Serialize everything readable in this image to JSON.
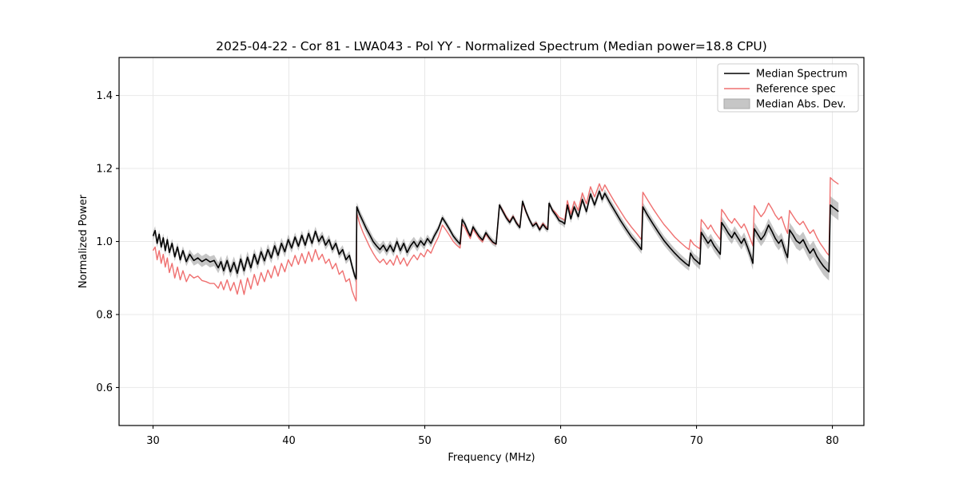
{
  "chart_data": {
    "type": "line",
    "title": "2025-04-22 - Cor 81 - LWA043 - Pol YY - Normalized Spectrum (Median power=18.8 CPU)",
    "xlabel": "Frequency (MHz)",
    "ylabel": "Normalized Power",
    "xlim": [
      27.5,
      82.32
    ],
    "ylim": [
      0.496,
      1.504
    ],
    "xticks": [
      30,
      40,
      50,
      60,
      70,
      80
    ],
    "yticks": [
      0.6,
      0.8,
      1.0,
      1.2,
      1.4
    ],
    "grid": true,
    "grid_color": "#e8e8e8",
    "background": "#ffffff",
    "legend": {
      "location": "upper right"
    },
    "series": [
      {
        "name": "Median Spectrum",
        "type": "line",
        "color": "#000000"
      },
      {
        "name": "Reference spec",
        "type": "line",
        "color": "#ef7070"
      },
      {
        "name": "Median Abs. Dev.",
        "type": "band",
        "color": "#808080",
        "fill_alpha": 0.45
      }
    ],
    "points_format": [
      "freq_mhz",
      "median_spectrum",
      "reference_spec",
      "median_abs_dev"
    ],
    "points": [
      [
        30.0,
        1.015,
        0.975,
        0.012
      ],
      [
        30.15,
        1.03,
        0.985,
        0.012
      ],
      [
        30.3,
        0.995,
        0.95,
        0.012
      ],
      [
        30.45,
        1.02,
        0.975,
        0.012
      ],
      [
        30.6,
        0.985,
        0.94,
        0.012
      ],
      [
        30.75,
        1.01,
        0.965,
        0.012
      ],
      [
        30.9,
        0.975,
        0.93,
        0.012
      ],
      [
        31.05,
        1.005,
        0.955,
        0.012
      ],
      [
        31.2,
        0.97,
        0.915,
        0.012
      ],
      [
        31.4,
        0.995,
        0.94,
        0.012
      ],
      [
        31.6,
        0.958,
        0.9,
        0.012
      ],
      [
        31.8,
        0.985,
        0.93,
        0.012
      ],
      [
        32.0,
        0.95,
        0.895,
        0.012
      ],
      [
        32.2,
        0.975,
        0.92,
        0.012
      ],
      [
        32.45,
        0.945,
        0.89,
        0.013
      ],
      [
        32.7,
        0.965,
        0.91,
        0.013
      ],
      [
        33.0,
        0.948,
        0.9,
        0.014
      ],
      [
        33.3,
        0.955,
        0.905,
        0.015
      ],
      [
        33.6,
        0.945,
        0.893,
        0.015
      ],
      [
        33.9,
        0.952,
        0.89,
        0.015
      ],
      [
        34.2,
        0.944,
        0.885,
        0.015
      ],
      [
        34.5,
        0.948,
        0.885,
        0.015
      ],
      [
        34.8,
        0.928,
        0.872,
        0.015
      ],
      [
        35.0,
        0.945,
        0.89,
        0.015
      ],
      [
        35.2,
        0.92,
        0.868,
        0.016
      ],
      [
        35.45,
        0.948,
        0.895,
        0.016
      ],
      [
        35.7,
        0.917,
        0.865,
        0.016
      ],
      [
        35.95,
        0.943,
        0.888,
        0.016
      ],
      [
        36.2,
        0.913,
        0.856,
        0.016
      ],
      [
        36.45,
        0.952,
        0.895,
        0.016
      ],
      [
        36.7,
        0.92,
        0.855,
        0.016
      ],
      [
        36.95,
        0.957,
        0.9,
        0.016
      ],
      [
        37.2,
        0.928,
        0.87,
        0.015
      ],
      [
        37.45,
        0.965,
        0.91,
        0.015
      ],
      [
        37.7,
        0.938,
        0.88,
        0.015
      ],
      [
        37.95,
        0.972,
        0.915,
        0.015
      ],
      [
        38.2,
        0.947,
        0.89,
        0.015
      ],
      [
        38.45,
        0.978,
        0.922,
        0.015
      ],
      [
        38.7,
        0.955,
        0.9,
        0.015
      ],
      [
        38.95,
        0.988,
        0.933,
        0.015
      ],
      [
        39.2,
        0.962,
        0.905,
        0.015
      ],
      [
        39.45,
        0.995,
        0.94,
        0.015
      ],
      [
        39.7,
        0.972,
        0.917,
        0.015
      ],
      [
        39.95,
        1.005,
        0.95,
        0.014
      ],
      [
        40.2,
        0.982,
        0.932,
        0.013
      ],
      [
        40.45,
        1.012,
        0.962,
        0.013
      ],
      [
        40.7,
        0.987,
        0.937,
        0.013
      ],
      [
        40.95,
        1.017,
        0.967,
        0.013
      ],
      [
        41.2,
        0.99,
        0.94,
        0.013
      ],
      [
        41.45,
        1.022,
        0.972,
        0.013
      ],
      [
        41.7,
        0.995,
        0.945,
        0.013
      ],
      [
        41.95,
        1.028,
        0.978,
        0.013
      ],
      [
        42.2,
        1.0,
        0.95,
        0.013
      ],
      [
        42.45,
        1.015,
        0.965,
        0.013
      ],
      [
        42.7,
        0.99,
        0.94,
        0.013
      ],
      [
        42.95,
        1.005,
        0.952,
        0.013
      ],
      [
        43.2,
        0.978,
        0.925,
        0.012
      ],
      [
        43.45,
        0.995,
        0.94,
        0.012
      ],
      [
        43.7,
        0.965,
        0.91,
        0.012
      ],
      [
        43.95,
        0.978,
        0.92,
        0.012
      ],
      [
        44.2,
        0.95,
        0.89,
        0.012
      ],
      [
        44.45,
        0.962,
        0.898,
        0.012
      ],
      [
        44.65,
        0.932,
        0.865,
        0.012
      ],
      [
        44.85,
        0.905,
        0.845,
        0.012
      ],
      [
        44.95,
        0.897,
        0.837,
        0.012
      ],
      [
        45.0,
        1.095,
        1.077,
        0.012
      ],
      [
        45.2,
        1.075,
        1.05,
        0.013
      ],
      [
        45.45,
        1.055,
        1.025,
        0.013
      ],
      [
        45.7,
        1.035,
        1.005,
        0.013
      ],
      [
        45.95,
        1.018,
        0.985,
        0.013
      ],
      [
        46.2,
        1.0,
        0.968,
        0.013
      ],
      [
        46.45,
        0.988,
        0.953,
        0.013
      ],
      [
        46.7,
        0.978,
        0.942,
        0.013
      ],
      [
        46.95,
        0.99,
        0.952,
        0.013
      ],
      [
        47.2,
        0.973,
        0.937,
        0.013
      ],
      [
        47.45,
        0.99,
        0.95,
        0.013
      ],
      [
        47.7,
        0.972,
        0.935,
        0.013
      ],
      [
        47.95,
        1.0,
        0.962,
        0.013
      ],
      [
        48.2,
        0.975,
        0.938,
        0.013
      ],
      [
        48.45,
        0.995,
        0.955,
        0.013
      ],
      [
        48.7,
        0.97,
        0.933,
        0.013
      ],
      [
        48.95,
        0.988,
        0.95,
        0.013
      ],
      [
        49.2,
        1.0,
        0.963,
        0.013
      ],
      [
        49.45,
        0.985,
        0.95,
        0.013
      ],
      [
        49.7,
        1.002,
        0.968,
        0.012
      ],
      [
        49.95,
        0.99,
        0.958,
        0.012
      ],
      [
        50.2,
        1.008,
        0.978,
        0.011
      ],
      [
        50.45,
        0.995,
        0.968,
        0.011
      ],
      [
        50.7,
        1.015,
        0.99,
        0.011
      ],
      [
        51.0,
        1.035,
        1.012,
        0.009
      ],
      [
        51.3,
        1.065,
        1.045,
        0.009
      ],
      [
        51.55,
        1.05,
        1.032,
        0.009
      ],
      [
        51.8,
        1.035,
        1.018,
        0.009
      ],
      [
        52.1,
        1.015,
        1.0,
        0.009
      ],
      [
        52.35,
        1.003,
        0.99,
        0.009
      ],
      [
        52.6,
        0.993,
        0.982,
        0.009
      ],
      [
        52.75,
        1.06,
        1.048,
        0.009
      ],
      [
        52.95,
        1.048,
        1.038,
        0.009
      ],
      [
        53.15,
        1.03,
        1.022,
        0.009
      ],
      [
        53.35,
        1.015,
        1.008,
        0.009
      ],
      [
        53.55,
        1.04,
        1.033,
        0.009
      ],
      [
        53.75,
        1.028,
        1.022,
        0.009
      ],
      [
        54.0,
        1.014,
        1.008,
        0.009
      ],
      [
        54.25,
        1.004,
        0.999,
        0.009
      ],
      [
        54.5,
        1.024,
        1.02,
        0.009
      ],
      [
        54.75,
        1.01,
        1.007,
        0.009
      ],
      [
        55.0,
        0.999,
        0.997,
        0.009
      ],
      [
        55.25,
        0.993,
        0.992,
        0.009
      ],
      [
        55.5,
        1.1,
        1.1,
        0.008
      ],
      [
        55.75,
        1.082,
        1.085,
        0.008
      ],
      [
        56.0,
        1.065,
        1.068,
        0.008
      ],
      [
        56.25,
        1.052,
        1.055,
        0.008
      ],
      [
        56.5,
        1.068,
        1.07,
        0.008
      ],
      [
        56.75,
        1.05,
        1.052,
        0.008
      ],
      [
        57.0,
        1.038,
        1.04,
        0.008
      ],
      [
        57.2,
        1.11,
        1.105,
        0.008
      ],
      [
        57.45,
        1.082,
        1.08,
        0.008
      ],
      [
        57.7,
        1.06,
        1.06,
        0.008
      ],
      [
        57.95,
        1.042,
        1.044,
        0.008
      ],
      [
        58.2,
        1.05,
        1.052,
        0.008
      ],
      [
        58.45,
        1.032,
        1.035,
        0.008
      ],
      [
        58.7,
        1.047,
        1.05,
        0.008
      ],
      [
        58.95,
        1.035,
        1.038,
        0.008
      ],
      [
        59.05,
        1.033,
        1.036,
        0.008
      ],
      [
        59.15,
        1.105,
        1.103,
        0.008
      ],
      [
        59.4,
        1.085,
        1.087,
        0.008
      ],
      [
        59.65,
        1.072,
        1.078,
        0.009
      ],
      [
        59.9,
        1.057,
        1.066,
        0.009
      ],
      [
        60.15,
        1.053,
        1.062,
        0.01
      ],
      [
        60.3,
        1.048,
        1.058,
        0.011
      ],
      [
        60.5,
        1.1,
        1.112,
        0.011
      ],
      [
        60.75,
        1.062,
        1.075,
        0.011
      ],
      [
        61.0,
        1.095,
        1.11,
        0.011
      ],
      [
        61.3,
        1.068,
        1.085,
        0.011
      ],
      [
        61.6,
        1.115,
        1.133,
        0.011
      ],
      [
        61.9,
        1.082,
        1.103,
        0.011
      ],
      [
        62.2,
        1.13,
        1.15,
        0.011
      ],
      [
        62.5,
        1.1,
        1.122,
        0.011
      ],
      [
        62.85,
        1.138,
        1.158,
        0.011
      ],
      [
        63.05,
        1.115,
        1.138,
        0.011
      ],
      [
        63.25,
        1.132,
        1.155,
        0.011
      ],
      [
        63.6,
        1.108,
        1.132,
        0.012
      ],
      [
        64.0,
        1.083,
        1.107,
        0.012
      ],
      [
        64.4,
        1.058,
        1.083,
        0.012
      ],
      [
        64.8,
        1.035,
        1.06,
        0.012
      ],
      [
        65.2,
        1.013,
        1.04,
        0.012
      ],
      [
        65.6,
        0.995,
        1.022,
        0.012
      ],
      [
        65.95,
        0.978,
        1.005,
        0.012
      ],
      [
        66.05,
        1.095,
        1.135,
        0.012
      ],
      [
        66.4,
        1.072,
        1.114,
        0.013
      ],
      [
        66.8,
        1.048,
        1.09,
        0.013
      ],
      [
        67.2,
        1.025,
        1.068,
        0.013
      ],
      [
        67.6,
        1.003,
        1.047,
        0.013
      ],
      [
        68.0,
        0.985,
        1.03,
        0.013
      ],
      [
        68.4,
        0.968,
        1.012,
        0.013
      ],
      [
        68.8,
        0.953,
        0.998,
        0.013
      ],
      [
        69.2,
        0.94,
        0.985,
        0.013
      ],
      [
        69.45,
        0.933,
        0.978,
        0.013
      ],
      [
        69.55,
        0.968,
        1.005,
        0.014
      ],
      [
        69.8,
        0.953,
        0.992,
        0.014
      ],
      [
        70.05,
        0.945,
        0.985,
        0.015
      ],
      [
        70.25,
        0.938,
        0.98,
        0.015
      ],
      [
        70.35,
        1.025,
        1.06,
        0.016
      ],
      [
        70.6,
        1.01,
        1.048,
        0.016
      ],
      [
        70.85,
        0.995,
        1.034,
        0.016
      ],
      [
        71.05,
        1.005,
        1.045,
        0.016
      ],
      [
        71.3,
        0.988,
        1.028,
        0.016
      ],
      [
        71.55,
        0.975,
        1.015,
        0.016
      ],
      [
        71.75,
        0.965,
        1.005,
        0.016
      ],
      [
        71.85,
        1.052,
        1.088,
        0.016
      ],
      [
        72.1,
        1.038,
        1.075,
        0.016
      ],
      [
        72.35,
        1.022,
        1.06,
        0.017
      ],
      [
        72.6,
        1.01,
        1.05,
        0.017
      ],
      [
        72.8,
        1.025,
        1.063,
        0.017
      ],
      [
        73.05,
        1.01,
        1.05,
        0.017
      ],
      [
        73.3,
        0.995,
        1.037,
        0.017
      ],
      [
        73.5,
        1.008,
        1.048,
        0.017
      ],
      [
        73.75,
        0.985,
        1.028,
        0.017
      ],
      [
        74.0,
        0.958,
        1.003,
        0.018
      ],
      [
        74.15,
        0.94,
        0.988,
        0.018
      ],
      [
        74.25,
        1.035,
        1.098,
        0.018
      ],
      [
        74.5,
        1.02,
        1.082,
        0.018
      ],
      [
        74.75,
        1.005,
        1.068,
        0.018
      ],
      [
        75.0,
        1.018,
        1.08,
        0.018
      ],
      [
        75.3,
        1.045,
        1.105,
        0.018
      ],
      [
        75.55,
        1.028,
        1.09,
        0.018
      ],
      [
        75.8,
        1.008,
        1.072,
        0.019
      ],
      [
        76.05,
        0.995,
        1.06,
        0.019
      ],
      [
        76.25,
        1.005,
        1.068,
        0.019
      ],
      [
        76.5,
        0.975,
        1.04,
        0.02
      ],
      [
        76.7,
        0.956,
        1.022,
        0.02
      ],
      [
        76.85,
        1.032,
        1.085,
        0.02
      ],
      [
        77.1,
        1.018,
        1.07,
        0.021
      ],
      [
        77.35,
        1.002,
        1.056,
        0.021
      ],
      [
        77.6,
        0.995,
        1.046,
        0.021
      ],
      [
        77.85,
        1.005,
        1.055,
        0.022
      ],
      [
        78.1,
        0.985,
        1.038,
        0.022
      ],
      [
        78.35,
        0.968,
        1.022,
        0.022
      ],
      [
        78.6,
        0.98,
        1.032,
        0.022
      ],
      [
        78.85,
        0.96,
        1.012,
        0.023
      ],
      [
        79.1,
        0.945,
        0.995,
        0.023
      ],
      [
        79.35,
        0.932,
        0.982,
        0.024
      ],
      [
        79.6,
        0.922,
        0.968,
        0.024
      ],
      [
        79.75,
        0.917,
        0.962,
        0.024
      ],
      [
        79.85,
        1.1,
        1.175,
        0.024
      ],
      [
        80.1,
        1.092,
        1.166,
        0.024
      ],
      [
        80.45,
        1.082,
        1.157,
        0.024
      ]
    ]
  }
}
